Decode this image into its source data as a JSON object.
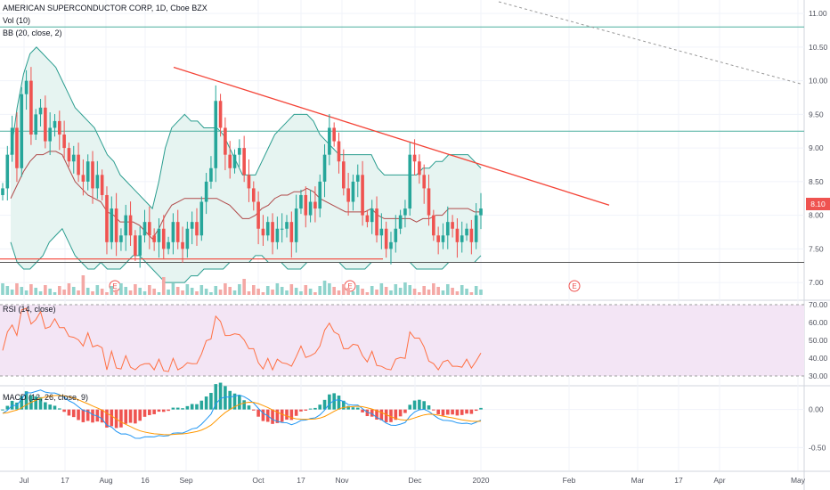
{
  "legend": {
    "title": "AMERICAN SUPERCONDUCTOR CORP, 1D, Cboe BZX",
    "vol": "Vol (10)",
    "bb": "BB (20, close, 2)",
    "rsi": "RSI (14, close)",
    "macd": "MACD (12, 26, close, 9)"
  },
  "price_tag": "8.10",
  "earnings_marker": "E",
  "colors": {
    "up": "#26a69a",
    "down": "#ef5350",
    "bb_band": "#2a9d8f",
    "bb_fill": "#e6f4f1",
    "bb_mid": "#b04a4a",
    "trendline": "#f44336",
    "hline": "#4caf9f",
    "support": "#f44336",
    "rsi_line": "#ff7043",
    "rsi_bg": "#f3e5f5",
    "macd_line": "#2196f3",
    "signal_line": "#ff9800"
  },
  "chart_data": [
    {
      "type": "candlestick",
      "title": "AMERICAN SUPERCONDUCTOR CORP, 1D, Cboe BZX",
      "x_ticks": [
        "Jul",
        "17",
        "Aug",
        "16",
        "Sep",
        "Oct",
        "17",
        "Nov",
        "Dec",
        "2020",
        "Feb",
        "Mar",
        "17",
        "Apr",
        "May"
      ],
      "y_ticks": [
        "11.00",
        "10.50",
        "10.00",
        "9.50",
        "9.00",
        "8.50",
        "8.00",
        "7.50",
        "7.00"
      ],
      "ylim": [
        6.75,
        11.2
      ],
      "closes": [
        8.4,
        8.9,
        9.3,
        8.7,
        9.8,
        10.0,
        9.2,
        9.5,
        9.6,
        9.1,
        9.3,
        9.4,
        9.2,
        9.0,
        8.8,
        8.9,
        8.6,
        8.5,
        8.8,
        8.4,
        8.6,
        8.3,
        7.6,
        8.1,
        7.6,
        7.7,
        8.0,
        7.7,
        7.4,
        7.7,
        7.9,
        7.7,
        7.6,
        7.8,
        7.5,
        7.6,
        7.9,
        7.6,
        7.5,
        7.8,
        7.9,
        7.7,
        8.2,
        8.5,
        8.7,
        9.7,
        9.3,
        8.9,
        8.7,
        8.9,
        9.0,
        8.6,
        8.4,
        8.2,
        7.8,
        7.7,
        7.9,
        7.6,
        7.8,
        7.8,
        7.9,
        7.6,
        8.1,
        8.3,
        8.0,
        8.2,
        8.1,
        8.5,
        8.9,
        9.3,
        9.1,
        8.8,
        8.4,
        8.2,
        8.5,
        8.6,
        8.0,
        7.9,
        8.1,
        7.7,
        7.8,
        7.5,
        7.6,
        7.8,
        8.0,
        8.1,
        8.9,
        8.8,
        8.6,
        8.4,
        8.0,
        7.7,
        7.6,
        7.7,
        7.9,
        7.8,
        7.6,
        7.7,
        7.8,
        7.6,
        8.0,
        8.1
      ],
      "bb_upper": [
        8.9,
        9.6,
        10.1,
        10.4,
        10.5,
        10.4,
        10.3,
        10.2,
        10.0,
        9.8,
        9.6,
        9.5,
        9.4,
        9.3,
        9.1,
        8.9,
        8.8,
        8.6,
        8.5,
        8.4,
        8.3,
        8.2,
        8.1,
        8.5,
        9.0,
        9.3,
        9.4,
        9.5,
        9.4,
        9.4,
        9.3,
        9.3,
        9.3,
        9.2,
        9.0,
        8.8,
        8.6,
        8.6,
        8.6,
        8.8,
        9.0,
        9.2,
        9.3,
        9.4,
        9.5,
        9.5,
        9.5,
        9.4,
        9.2,
        9.1,
        9.0,
        8.9,
        8.9,
        8.9,
        8.9,
        8.9,
        8.9,
        8.7,
        8.6,
        8.6,
        8.6,
        8.6,
        8.6,
        8.6,
        8.7,
        8.7,
        8.8,
        8.8,
        8.9,
        8.9,
        8.9,
        8.9,
        8.8,
        8.7
      ],
      "bb_lower": [
        7.6,
        7.3,
        7.2,
        7.2,
        7.3,
        7.4,
        7.6,
        7.7,
        7.8,
        7.6,
        7.4,
        7.3,
        7.2,
        7.2,
        7.3,
        7.2,
        7.2,
        7.2,
        7.3,
        7.4,
        7.4,
        7.3,
        7.2,
        7.1,
        7.0,
        7.0,
        7.0,
        7.0,
        7.1,
        7.1,
        7.2,
        7.2,
        7.2,
        7.2,
        7.3,
        7.3,
        7.3,
        7.3,
        7.4,
        7.4,
        7.3,
        7.3,
        7.3,
        7.2,
        7.2,
        7.2,
        7.3,
        7.3,
        7.3,
        7.3,
        7.3,
        7.3,
        7.2,
        7.2,
        7.2,
        7.2,
        7.3,
        7.3,
        7.3,
        7.3,
        7.3,
        7.3,
        7.3,
        7.2,
        7.2,
        7.2,
        7.2,
        7.2,
        7.3,
        7.3,
        7.3,
        7.3,
        7.3,
        7.4
      ],
      "horizontal_levels": [
        10.8,
        9.25,
        7.3
      ],
      "support_level": 7.35,
      "trendline": [
        [
          10.2,
          8.15
        ]
      ],
      "earnings_markers": [
        "Aug",
        "Nov",
        "Feb"
      ]
    },
    {
      "type": "line",
      "title": "RSI (14, close)",
      "y_ticks": [
        "70.00",
        "60.00",
        "50.00",
        "40.00",
        "30.00"
      ],
      "ylim": [
        30,
        70
      ]
    },
    {
      "type": "bar+line",
      "title": "MACD (12, 26, close, 9)",
      "y_ticks": [
        "0.00",
        "-0.50"
      ],
      "ylim": [
        -0.75,
        0.25
      ]
    }
  ]
}
